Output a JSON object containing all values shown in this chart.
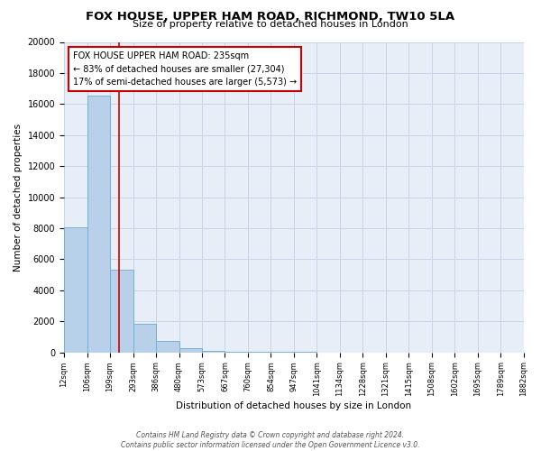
{
  "title": "FOX HOUSE, UPPER HAM ROAD, RICHMOND, TW10 5LA",
  "subtitle": "Size of property relative to detached houses in London",
  "xlabel": "Distribution of detached houses by size in London",
  "ylabel": "Number of detached properties",
  "bin_labels": [
    "12sqm",
    "106sqm",
    "199sqm",
    "293sqm",
    "386sqm",
    "480sqm",
    "573sqm",
    "667sqm",
    "760sqm",
    "854sqm",
    "947sqm",
    "1041sqm",
    "1134sqm",
    "1228sqm",
    "1321sqm",
    "1415sqm",
    "1508sqm",
    "1602sqm",
    "1695sqm",
    "1789sqm",
    "1882sqm"
  ],
  "bin_edges": [
    12,
    106,
    199,
    293,
    386,
    480,
    573,
    667,
    760,
    854,
    947,
    1041,
    1134,
    1228,
    1321,
    1415,
    1508,
    1602,
    1695,
    1789,
    1882
  ],
  "bar_heights": [
    8050,
    16550,
    5300,
    1820,
    720,
    290,
    120,
    55,
    30,
    15,
    8,
    5,
    3,
    2,
    1,
    1,
    0,
    0,
    0,
    0
  ],
  "bar_color": "#b8d0ea",
  "bar_edge_color": "#6aaad4",
  "property_size": 235,
  "red_line_color": "#cc0000",
  "annotation_line1": "FOX HOUSE UPPER HAM ROAD: 235sqm",
  "annotation_line2": "← 83% of detached houses are smaller (27,304)",
  "annotation_line3": "17% of semi-detached houses are larger (5,573) →",
  "annotation_box_color": "#cc0000",
  "ylim": [
    0,
    20000
  ],
  "yticks": [
    0,
    2000,
    4000,
    6000,
    8000,
    10000,
    12000,
    14000,
    16000,
    18000,
    20000
  ],
  "grid_color": "#c8d4e8",
  "background_color": "#e8eef8",
  "footer_line1": "Contains HM Land Registry data © Crown copyright and database right 2024.",
  "footer_line2": "Contains public sector information licensed under the Open Government Licence v3.0."
}
